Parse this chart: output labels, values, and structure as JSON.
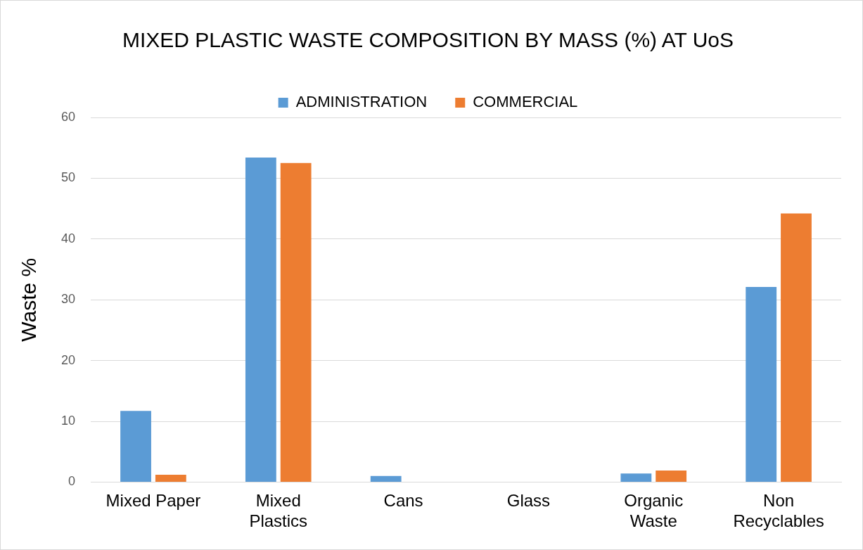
{
  "chart_data": {
    "type": "bar",
    "title": "MIXED PLASTIC WASTE COMPOSITION BY MASS (%) AT UoS",
    "ylabel": "Waste %",
    "categories": [
      "Mixed Paper",
      "Mixed Plastics",
      "Cans",
      "Glass",
      "Organic Waste",
      "Non Recyclables"
    ],
    "series": [
      {
        "name": "ADMINISTRATION",
        "color": "#5b9bd5",
        "values": [
          11.7,
          53.4,
          1.0,
          0,
          1.4,
          32.1
        ]
      },
      {
        "name": "COMMERCIAL",
        "color": "#ed7d31",
        "values": [
          1.2,
          52.5,
          0,
          0,
          1.9,
          44.2
        ]
      }
    ],
    "ylim": [
      0,
      60
    ],
    "yticks": [
      0,
      10,
      20,
      30,
      40,
      50,
      60
    ],
    "grid": "y",
    "legend": "top"
  }
}
